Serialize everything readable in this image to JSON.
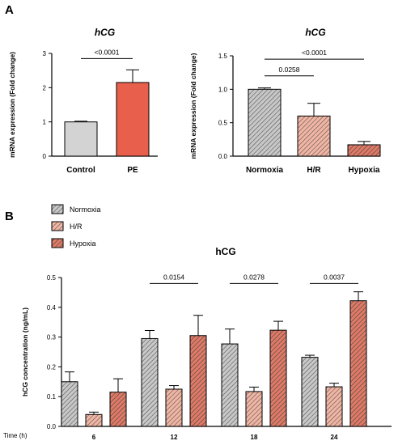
{
  "figure": {
    "panel_a_label": "A",
    "panel_b_label": "B",
    "colors": {
      "gray": "#d3d3d3",
      "pe_red": "#e8604c",
      "hatch_gray": "#c8c8c8",
      "hatch_light": "#f2b5a3",
      "hatch_salmon": "#e07a66",
      "axis": "#000000"
    }
  },
  "chart_data": [
    {
      "id": "A1",
      "type": "bar",
      "title": "hCG",
      "ylabel": "mRNA expression (Fold change)",
      "ylim": [
        0,
        3
      ],
      "yticks": [
        "0",
        "1",
        "2",
        "3"
      ],
      "categories": [
        "Control",
        "PE"
      ],
      "values": [
        1.0,
        2.15
      ],
      "errors": [
        0.02,
        0.37
      ],
      "styles": [
        "gray",
        "pe_red"
      ],
      "annotations": [
        {
          "text": "<0.0001",
          "from": 0,
          "to": 1,
          "y": 2.85
        }
      ]
    },
    {
      "id": "A2",
      "type": "bar",
      "title": "hCG",
      "ylabel": "mRNA expression (Fold change)",
      "ylim": [
        0,
        1.5
      ],
      "yticks": [
        "0.0",
        "0.5",
        "1.0",
        "1.5"
      ],
      "categories": [
        "Normoxia",
        "H/R",
        "Hypoxia"
      ],
      "values": [
        1.0,
        0.6,
        0.17
      ],
      "errors": [
        0.02,
        0.19,
        0.05
      ],
      "styles": [
        "hatch_gray",
        "hatch_light",
        "hatch_salmon"
      ],
      "annotations": [
        {
          "text": "0.0258",
          "from": 0,
          "to": 1,
          "y": 1.2
        },
        {
          "text": "<0.0001",
          "from": 0,
          "to": 2,
          "y": 1.45
        }
      ]
    },
    {
      "id": "B",
      "type": "bar",
      "title": "hCG",
      "ylabel": "hCG concentration (ng/mL)",
      "xlabel": "Time (h)",
      "ylim": [
        0,
        0.5
      ],
      "yticks": [
        "0.0",
        "0.1",
        "0.2",
        "0.3",
        "0.4",
        "0.5"
      ],
      "categories": [
        "6",
        "12",
        "18",
        "24"
      ],
      "series": [
        {
          "name": "Normoxia",
          "style": "hatch_gray",
          "values": [
            0.15,
            0.295,
            0.277,
            0.232
          ],
          "errors": [
            0.033,
            0.027,
            0.05,
            0.007
          ]
        },
        {
          "name": "H/R",
          "style": "hatch_light",
          "values": [
            0.04,
            0.125,
            0.117,
            0.133
          ],
          "errors": [
            0.008,
            0.012,
            0.015,
            0.012
          ]
        },
        {
          "name": "Hypoxia",
          "style": "hatch_salmon",
          "values": [
            0.115,
            0.305,
            0.323,
            0.422
          ],
          "errors": [
            0.045,
            0.068,
            0.03,
            0.03
          ]
        }
      ],
      "legend_position": "top-left",
      "annotations": [
        {
          "text": "0.0154",
          "group": 1,
          "y": 0.48
        },
        {
          "text": "0.0278",
          "group": 2,
          "y": 0.48
        },
        {
          "text": "0.0037",
          "group": 3,
          "y": 0.48
        }
      ]
    }
  ]
}
